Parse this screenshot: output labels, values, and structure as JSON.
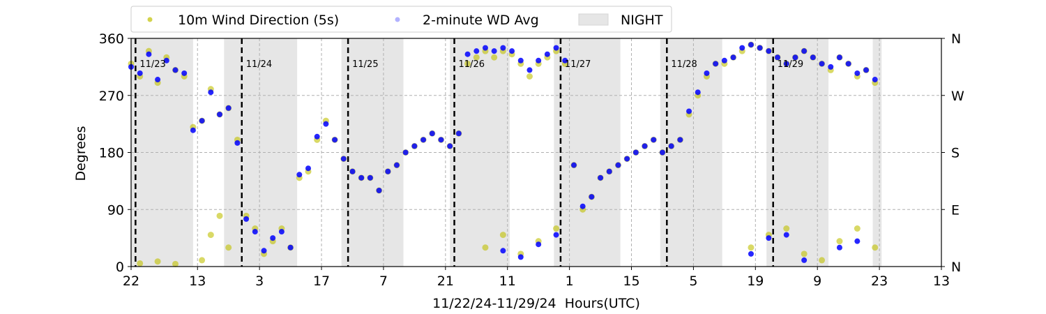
{
  "chart_data": {
    "type": "scatter",
    "xlabel": "11/22/24-11/29/24  Hours(UTC)",
    "ylabel": "Degrees",
    "ylim": [
      0,
      360
    ],
    "x_ticks": [
      {
        "h": 0,
        "label": "22"
      },
      {
        "h": 15,
        "label": "13"
      },
      {
        "h": 29,
        "label": "3"
      },
      {
        "h": 43,
        "label": "17"
      },
      {
        "h": 57,
        "label": "7"
      },
      {
        "h": 71,
        "label": "21"
      },
      {
        "h": 85,
        "label": "11"
      },
      {
        "h": 99,
        "label": "1"
      },
      {
        "h": 113,
        "label": "15"
      },
      {
        "h": 127,
        "label": "5"
      },
      {
        "h": 141,
        "label": "19"
      },
      {
        "h": 155,
        "label": "9"
      },
      {
        "h": 169,
        "label": "23"
      },
      {
        "h": 183,
        "label": "13"
      }
    ],
    "xlim": [
      0,
      183
    ],
    "y_ticks": [
      0,
      90,
      180,
      270,
      360
    ],
    "right_ticks": [
      {
        "v": 0,
        "label": "N"
      },
      {
        "v": 90,
        "label": "E"
      },
      {
        "v": 180,
        "label": "S"
      },
      {
        "v": 270,
        "label": "W"
      },
      {
        "v": 360,
        "label": "N"
      }
    ],
    "grid": true,
    "legend": {
      "placement": "top-center",
      "entries": [
        {
          "label": "10m Wind Direction (5s)",
          "color": "#c0c000"
        },
        {
          "label": "2-minute WD Avg",
          "color": "#0000ff"
        },
        {
          "label": "NIGHT",
          "color": "#e6e6e6"
        }
      ]
    },
    "day_markers": [
      {
        "h": 1,
        "label": "11/23"
      },
      {
        "h": 25,
        "label": "11/24"
      },
      {
        "h": 49,
        "label": "11/25"
      },
      {
        "h": 73,
        "label": "11/26"
      },
      {
        "h": 97,
        "label": "11/27"
      },
      {
        "h": 121,
        "label": "11/28"
      },
      {
        "h": 145,
        "label": "11/29"
      }
    ],
    "night_periods": [
      [
        0,
        14
      ],
      [
        21,
        37.5
      ],
      [
        47.5,
        61.5
      ],
      [
        72,
        85.5
      ],
      [
        95.5,
        110.5
      ],
      [
        119.5,
        133.5
      ],
      [
        143.5,
        157.5
      ],
      [
        167.5,
        169.5
      ]
    ],
    "series": [
      {
        "name": "10m Wind Direction (5s)",
        "color": "#c0c000",
        "points": [
          [
            0,
            320
          ],
          [
            2,
            300
          ],
          [
            4,
            340
          ],
          [
            6,
            290
          ],
          [
            8,
            330
          ],
          [
            10,
            310
          ],
          [
            12,
            300
          ],
          [
            14,
            220
          ],
          [
            16,
            230
          ],
          [
            18,
            280
          ],
          [
            20,
            240
          ],
          [
            22,
            250
          ],
          [
            24,
            200
          ],
          [
            26,
            80
          ],
          [
            28,
            60
          ],
          [
            30,
            20
          ],
          [
            32,
            40
          ],
          [
            34,
            60
          ],
          [
            36,
            30
          ],
          [
            38,
            140
          ],
          [
            40,
            150
          ],
          [
            42,
            200
          ],
          [
            44,
            230
          ],
          [
            46,
            200
          ],
          [
            48,
            170
          ],
          [
            50,
            150
          ],
          [
            52,
            140
          ],
          [
            54,
            140
          ],
          [
            56,
            120
          ],
          [
            58,
            150
          ],
          [
            60,
            160
          ],
          [
            62,
            180
          ],
          [
            64,
            190
          ],
          [
            66,
            200
          ],
          [
            68,
            210
          ],
          [
            70,
            200
          ],
          [
            72,
            190
          ],
          [
            74,
            210
          ],
          [
            76,
            320
          ],
          [
            78,
            330
          ],
          [
            80,
            340
          ],
          [
            82,
            330
          ],
          [
            84,
            340
          ],
          [
            86,
            335
          ],
          [
            88,
            320
          ],
          [
            90,
            300
          ],
          [
            92,
            320
          ],
          [
            94,
            330
          ],
          [
            96,
            340
          ],
          [
            98,
            320
          ],
          [
            100,
            160
          ],
          [
            102,
            90
          ],
          [
            104,
            110
          ],
          [
            106,
            140
          ],
          [
            108,
            150
          ],
          [
            110,
            160
          ],
          [
            112,
            170
          ],
          [
            114,
            180
          ],
          [
            116,
            190
          ],
          [
            118,
            200
          ],
          [
            120,
            180
          ],
          [
            122,
            190
          ],
          [
            124,
            200
          ],
          [
            126,
            240
          ],
          [
            128,
            270
          ],
          [
            130,
            300
          ],
          [
            132,
            320
          ],
          [
            134,
            320
          ],
          [
            136,
            330
          ],
          [
            138,
            340
          ],
          [
            140,
            350
          ],
          [
            142,
            345
          ],
          [
            144,
            340
          ],
          [
            146,
            330
          ],
          [
            148,
            320
          ],
          [
            150,
            330
          ],
          [
            152,
            340
          ],
          [
            154,
            330
          ],
          [
            156,
            320
          ],
          [
            158,
            310
          ],
          [
            160,
            330
          ],
          [
            162,
            320
          ],
          [
            164,
            300
          ],
          [
            166,
            310
          ],
          [
            168,
            290
          ],
          [
            2,
            5
          ],
          [
            6,
            8
          ],
          [
            10,
            4
          ],
          [
            16,
            10
          ],
          [
            18,
            50
          ],
          [
            20,
            80
          ],
          [
            22,
            30
          ],
          [
            80,
            30
          ],
          [
            84,
            50
          ],
          [
            88,
            20
          ],
          [
            92,
            40
          ],
          [
            96,
            60
          ],
          [
            140,
            30
          ],
          [
            144,
            50
          ],
          [
            148,
            60
          ],
          [
            152,
            20
          ],
          [
            156,
            10
          ],
          [
            160,
            40
          ],
          [
            164,
            60
          ],
          [
            168,
            30
          ]
        ]
      },
      {
        "name": "2-minute WD Avg",
        "color": "#0000ff",
        "points": [
          [
            0,
            315
          ],
          [
            2,
            305
          ],
          [
            4,
            335
          ],
          [
            6,
            295
          ],
          [
            8,
            325
          ],
          [
            10,
            310
          ],
          [
            12,
            305
          ],
          [
            14,
            215
          ],
          [
            16,
            230
          ],
          [
            18,
            275
          ],
          [
            20,
            240
          ],
          [
            22,
            250
          ],
          [
            24,
            195
          ],
          [
            26,
            75
          ],
          [
            28,
            55
          ],
          [
            30,
            25
          ],
          [
            32,
            45
          ],
          [
            34,
            55
          ],
          [
            36,
            30
          ],
          [
            38,
            145
          ],
          [
            40,
            155
          ],
          [
            42,
            205
          ],
          [
            44,
            225
          ],
          [
            46,
            200
          ],
          [
            48,
            170
          ],
          [
            50,
            150
          ],
          [
            52,
            140
          ],
          [
            54,
            140
          ],
          [
            56,
            120
          ],
          [
            58,
            150
          ],
          [
            60,
            160
          ],
          [
            62,
            180
          ],
          [
            64,
            190
          ],
          [
            66,
            200
          ],
          [
            68,
            210
          ],
          [
            70,
            200
          ],
          [
            72,
            190
          ],
          [
            74,
            210
          ],
          [
            76,
            335
          ],
          [
            78,
            340
          ],
          [
            80,
            345
          ],
          [
            82,
            340
          ],
          [
            84,
            345
          ],
          [
            86,
            340
          ],
          [
            88,
            325
          ],
          [
            90,
            310
          ],
          [
            92,
            325
          ],
          [
            94,
            335
          ],
          [
            96,
            345
          ],
          [
            98,
            325
          ],
          [
            100,
            160
          ],
          [
            102,
            95
          ],
          [
            104,
            110
          ],
          [
            106,
            140
          ],
          [
            108,
            150
          ],
          [
            110,
            160
          ],
          [
            112,
            170
          ],
          [
            114,
            180
          ],
          [
            116,
            190
          ],
          [
            118,
            200
          ],
          [
            120,
            180
          ],
          [
            122,
            190
          ],
          [
            124,
            200
          ],
          [
            126,
            245
          ],
          [
            128,
            275
          ],
          [
            130,
            305
          ],
          [
            132,
            320
          ],
          [
            134,
            325
          ],
          [
            136,
            330
          ],
          [
            138,
            345
          ],
          [
            140,
            350
          ],
          [
            142,
            345
          ],
          [
            144,
            340
          ],
          [
            146,
            330
          ],
          [
            148,
            320
          ],
          [
            150,
            330
          ],
          [
            152,
            340
          ],
          [
            154,
            330
          ],
          [
            156,
            320
          ],
          [
            158,
            315
          ],
          [
            160,
            330
          ],
          [
            162,
            320
          ],
          [
            164,
            305
          ],
          [
            166,
            310
          ],
          [
            168,
            295
          ],
          [
            84,
            25
          ],
          [
            88,
            15
          ],
          [
            92,
            35
          ],
          [
            96,
            50
          ],
          [
            140,
            20
          ],
          [
            144,
            45
          ],
          [
            148,
            50
          ],
          [
            152,
            10
          ],
          [
            160,
            30
          ],
          [
            164,
            40
          ]
        ]
      }
    ]
  }
}
